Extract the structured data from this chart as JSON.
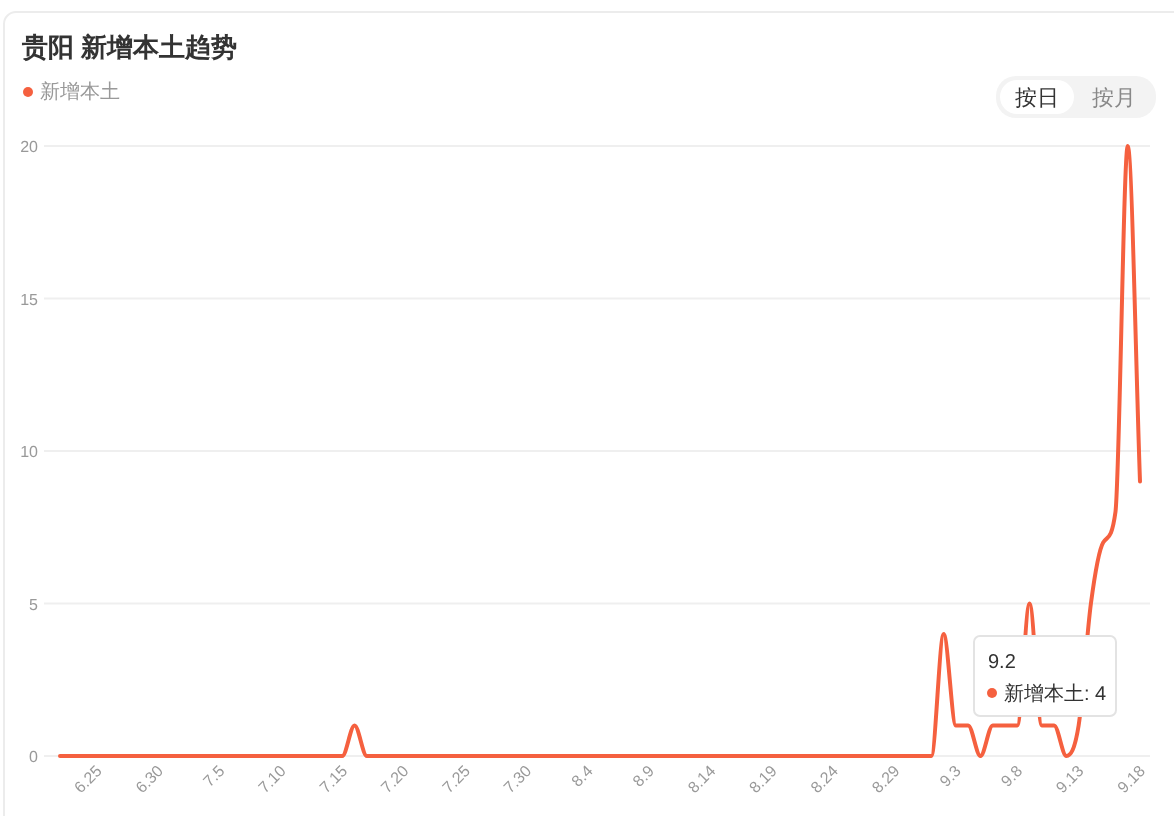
{
  "chart_data": {
    "type": "line",
    "title": "贵阳 新增本土趋势",
    "categories": [
      null,
      null,
      null,
      "6.25",
      null,
      null,
      null,
      null,
      "6.30",
      null,
      null,
      null,
      null,
      "7.5",
      null,
      null,
      null,
      null,
      "7.10",
      null,
      null,
      null,
      null,
      "7.15",
      null,
      null,
      null,
      null,
      "7.20",
      null,
      null,
      null,
      null,
      "7.25",
      null,
      null,
      null,
      null,
      "7.30",
      null,
      null,
      null,
      null,
      "8.4",
      null,
      null,
      null,
      null,
      "8.9",
      null,
      null,
      null,
      null,
      "8.14",
      null,
      null,
      null,
      null,
      "8.19",
      null,
      null,
      null,
      null,
      "8.24",
      null,
      null,
      null,
      null,
      "8.29",
      null,
      null,
      null,
      null,
      "9.3",
      null,
      null,
      null,
      null,
      "9.8",
      null,
      null,
      null,
      null,
      "9.13",
      null,
      null,
      null,
      null,
      "9.18"
    ],
    "series": [
      {
        "name": "新增本土",
        "color": "#f5603f",
        "values": [
          0,
          0,
          0,
          0,
          0,
          0,
          0,
          0,
          0,
          0,
          0,
          0,
          0,
          0,
          0,
          0,
          0,
          0,
          0,
          0,
          0,
          0,
          0,
          0,
          1,
          0,
          0,
          0,
          0,
          0,
          0,
          0,
          0,
          0,
          0,
          0,
          0,
          0,
          0,
          0,
          0,
          0,
          0,
          0,
          0,
          0,
          0,
          0,
          0,
          0,
          0,
          0,
          0,
          0,
          0,
          0,
          0,
          0,
          0,
          0,
          0,
          0,
          0,
          0,
          0,
          0,
          0,
          0,
          0,
          0,
          0,
          0,
          4,
          1,
          1,
          0,
          1,
          1,
          1,
          5,
          1,
          1,
          0,
          1,
          5,
          7,
          8,
          20,
          9
        ]
      }
    ],
    "ylim": [
      0,
      20
    ],
    "yticks": [
      0,
      5,
      10,
      15,
      20
    ],
    "grid": "y",
    "legend": "top left",
    "annotations": [
      "按日",
      "按月",
      "9.2\n新增本土: 4"
    ]
  }
}
